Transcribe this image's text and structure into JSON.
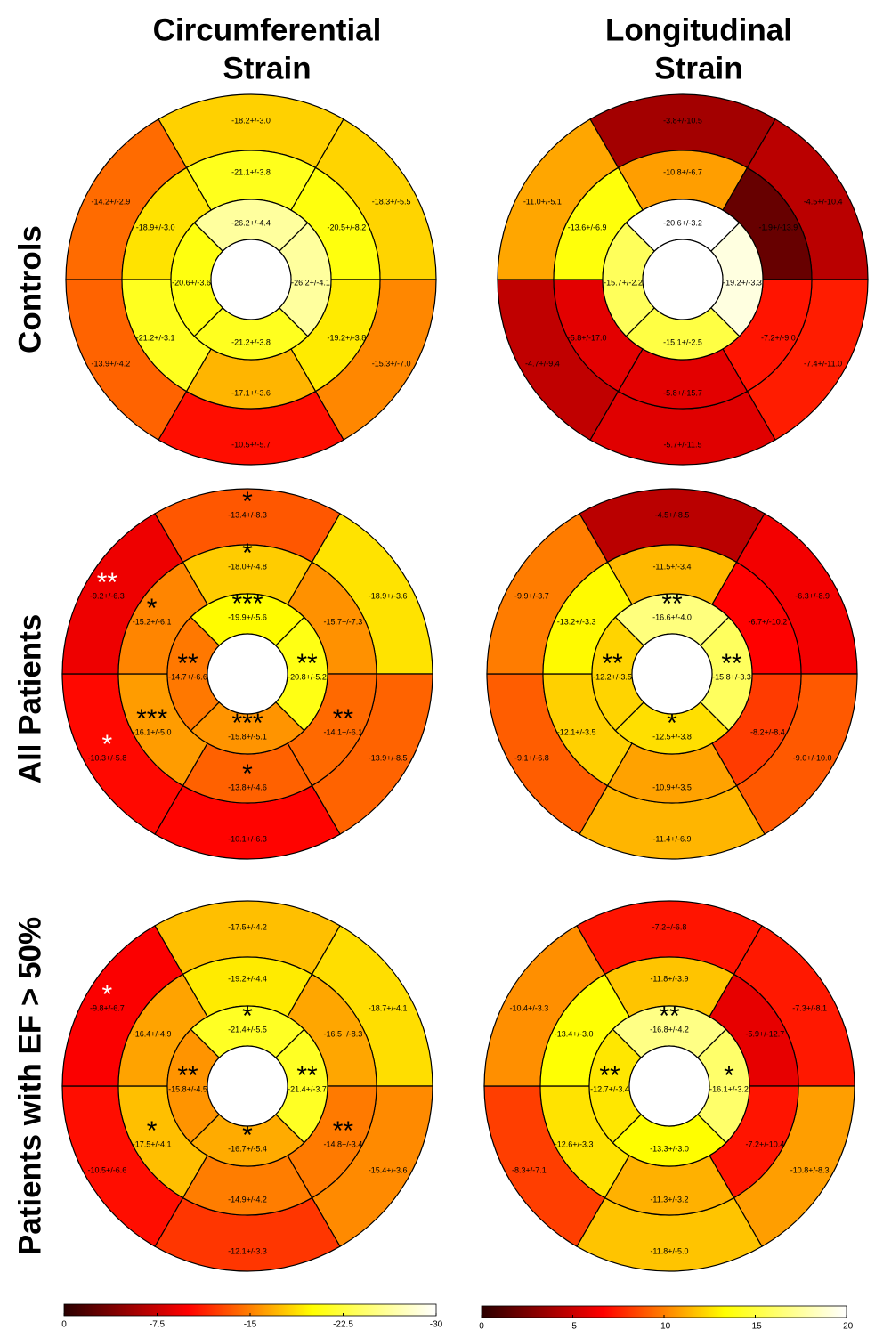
{
  "column_titles": [
    [
      "Circumferential",
      "Strain"
    ],
    [
      "Longitudinal",
      "Strain"
    ]
  ],
  "row_titles": [
    "Controls",
    "All Patients",
    "Patients with EF > 50%"
  ],
  "colormap": [
    "#2a0000",
    "#ff0000",
    "#ffff00",
    "#ffffff"
  ],
  "colorbars": [
    {
      "clim": [
        0,
        -30
      ],
      "ticks": [
        0,
        -7.5,
        -15,
        -22.5,
        -30
      ]
    },
    {
      "clim": [
        0,
        -20
      ],
      "ticks": [
        0,
        -5,
        -10,
        -15,
        -20
      ]
    }
  ],
  "chart_data": [
    {
      "type": "bullseye",
      "values": [
        -18.2,
        -18.3,
        -15.3,
        -10.5,
        -13.9,
        -14.2,
        -21.1,
        -20.5,
        -19.2,
        -17.1,
        -21.2,
        -18.9,
        -26.2,
        -26.2,
        -21.2,
        -20.6
      ],
      "value_labels": [
        "-18.2+/-3.0",
        "-18.3+/-5.5",
        "-15.3+/-7.0",
        "-10.5+/-5.7",
        "-13.9+/-4.2",
        "-14.2+/-2.9",
        "-21.1+/-3.8",
        "-20.5+/-8.2",
        "-19.2+/-3.8",
        "-17.1+/-3.6",
        "-21.2+/-3.1",
        "-18.9+/-3.0",
        "-26.2+/-4.4",
        "-26.2+/-4.1",
        "-21.2+/-3.8",
        "-20.6+/-3.6"
      ],
      "stars": [
        null,
        null,
        null,
        null,
        null,
        null,
        null,
        null,
        null,
        null,
        null,
        null,
        null,
        null,
        null,
        null
      ]
    },
    {
      "type": "bullseye",
      "values": [
        -3.8,
        -4.5,
        -7.4,
        -5.7,
        -4.7,
        -11.0,
        -10.8,
        -1.9,
        -7.2,
        -5.8,
        -5.8,
        -13.6,
        -20.6,
        -19.2,
        -15.1,
        -15.7
      ],
      "value_labels": [
        "-3.8+/-10.5",
        "-4.5+/-10.4",
        "-7.4+/-11.0",
        "-5.7+/-11.5",
        "-4.7+/-9.4",
        "-11.0+/-5.1",
        "-10.8+/-6.7",
        "-1.9+/-13.9",
        "-7.2+/-9.0",
        "-5.8+/-15.7",
        "-5.8+/-17.0",
        "-13.6+/-6.9",
        "-20.6+/-3.2",
        "-19.2+/-3.3",
        "-15.1+/-2.5",
        "-15.7+/-2.2"
      ],
      "stars": [
        null,
        null,
        null,
        null,
        null,
        null,
        null,
        null,
        null,
        null,
        null,
        null,
        null,
        null,
        null,
        null
      ]
    },
    {
      "type": "bullseye",
      "values": [
        -13.4,
        -18.9,
        -13.9,
        -10.1,
        -10.3,
        -9.2,
        -18.0,
        -15.7,
        -14.1,
        -13.8,
        -16.1,
        -15.2,
        -19.9,
        -20.8,
        -15.8,
        -14.7
      ],
      "value_labels": [
        "-13.4+/-8.3",
        "-18.9+/-3.6",
        "-13.9+/-8.5",
        "-10.1+/-6.3",
        "-10.3+/-5.8",
        "-9.2+/-6.3",
        "-18.0+/-4.8",
        "-15.7+/-7.3",
        "-14.1+/-6.1",
        "-13.8+/-4.6",
        "-16.1+/-5.0",
        "-15.2+/-6.1",
        "-19.9+/-5.6",
        "-20.8+/-5.2",
        "-15.8+/-5.1",
        "-14.7+/-6.6"
      ],
      "stars": [
        "*",
        null,
        null,
        null,
        "*",
        "**",
        "*",
        null,
        "**",
        "*",
        "***",
        "*",
        "***",
        "**",
        "***",
        "**"
      ]
    },
    {
      "type": "bullseye",
      "values": [
        -4.5,
        -6.3,
        -9.0,
        -11.4,
        -9.1,
        -9.9,
        -11.5,
        -6.7,
        -8.2,
        -10.9,
        -12.1,
        -13.2,
        -16.6,
        -15.8,
        -12.5,
        -12.2
      ],
      "value_labels": [
        "-4.5+/-8.5",
        "-6.3+/-8.9",
        "-9.0+/-10.0",
        "-11.4+/-6.9",
        "-9.1+/-6.8",
        "-9.9+/-3.7",
        "-11.5+/-3.4",
        "-6.7+/-10.2",
        "-8.2+/-8.4",
        "-10.9+/-3.5",
        "-12.1+/-3.5",
        "-13.2+/-3.3",
        "-16.6+/-4.0",
        "-15.8+/-3.3",
        "-12.5+/-3.8",
        "-12.2+/-3.5"
      ],
      "stars": [
        null,
        null,
        null,
        null,
        null,
        null,
        null,
        null,
        null,
        null,
        null,
        null,
        "**",
        "**",
        "*",
        "**"
      ]
    },
    {
      "type": "bullseye",
      "values": [
        -17.5,
        -18.7,
        -15.4,
        -12.1,
        -10.5,
        -9.8,
        -19.2,
        -16.5,
        -14.8,
        -14.9,
        -17.5,
        -16.4,
        -21.4,
        -21.4,
        -16.7,
        -15.8
      ],
      "value_labels": [
        "-17.5+/-4.2",
        "-18.7+/-4.1",
        "-15.4+/-3.6",
        "-12.1+/-3.3",
        "-10.5+/-6.6",
        "-9.8+/-6.7",
        "-19.2+/-4.4",
        "-16.5+/-8.3",
        "-14.8+/-3.4",
        "-14.9+/-4.2",
        "-17.5+/-4.1",
        "-16.4+/-4.9",
        "-21.4+/-5.5",
        "-21.4+/-3.7",
        "-16.7+/-5.4",
        "-15.8+/-4.5"
      ],
      "stars": [
        null,
        null,
        null,
        null,
        null,
        "*",
        null,
        null,
        "**",
        null,
        "*",
        null,
        "*",
        "**",
        "*",
        "**"
      ]
    },
    {
      "type": "bullseye",
      "values": [
        -7.2,
        -7.3,
        -10.8,
        -11.8,
        -8.3,
        -10.4,
        -11.8,
        -5.9,
        -7.2,
        -11.3,
        -12.6,
        -13.4,
        -16.8,
        -16.1,
        -13.3,
        -12.7
      ],
      "value_labels": [
        "-7.2+/-6.8",
        "-7.3+/-8.1",
        "-10.8+/-8.3",
        "-11.8+/-5.0",
        "-8.3+/-7.1",
        "-10.4+/-3.3",
        "-11.8+/-3.9",
        "-5.9+/-12.7",
        "-7.2+/-10.4",
        "-11.3+/-3.2",
        "-12.6+/-3.3",
        "-13.4+/-3.0",
        "-16.8+/-4.2",
        "-16.1+/-3.2",
        "-13.3+/-3.0",
        "-12.7+/-3.4"
      ],
      "stars": [
        null,
        null,
        null,
        null,
        null,
        null,
        null,
        null,
        null,
        null,
        null,
        null,
        "**",
        "*",
        null,
        "**"
      ]
    }
  ]
}
